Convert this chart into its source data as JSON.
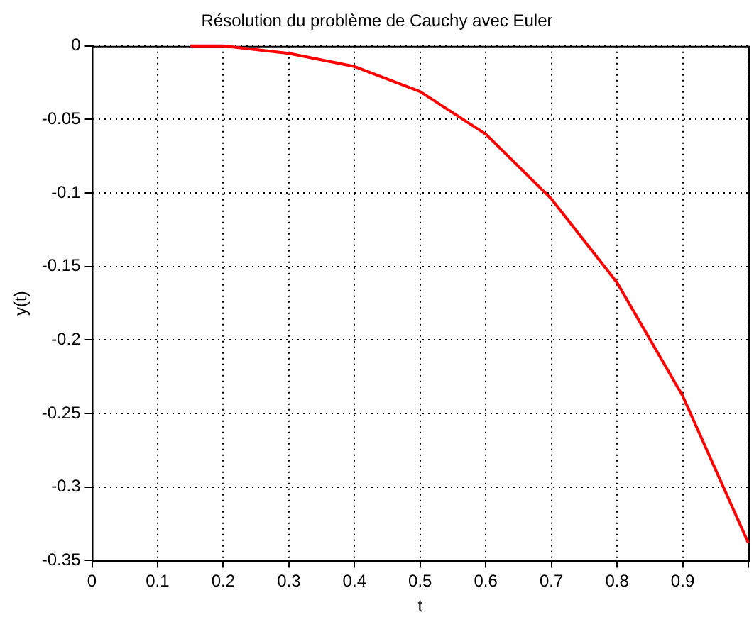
{
  "chart_data": {
    "type": "line",
    "title": "Résolution du problème de Cauchy avec Euler",
    "xlabel": "t",
    "ylabel": "y(t)",
    "x": [
      0.15,
      0.2,
      0.3,
      0.4,
      0.5,
      0.6,
      0.7,
      0.8,
      0.9,
      1.0
    ],
    "series": [
      {
        "color": "#ff0000",
        "values": [
          0,
          0,
          -0.005,
          -0.014,
          -0.031,
          -0.06,
          -0.104,
          -0.161,
          -0.238,
          -0.338
        ]
      }
    ],
    "xlim": [
      0,
      1
    ],
    "xticks": [
      0,
      0.1,
      0.2,
      0.3,
      0.4,
      0.5,
      0.6,
      0.7,
      0.8,
      0.9,
      {
        "value": 1,
        "label": null
      }
    ],
    "ylim": [
      -0.35,
      0
    ],
    "yticks": [
      -0.35,
      -0.3,
      -0.25,
      -0.2,
      -0.15,
      -0.1,
      -0.05,
      0
    ],
    "grid": true,
    "legend": false,
    "marker": "none",
    "line_style": "solid"
  }
}
